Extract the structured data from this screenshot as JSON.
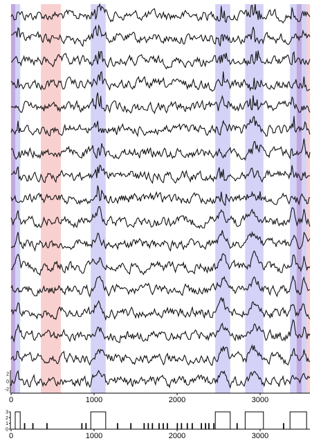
{
  "chart_data": [
    {
      "type": "line",
      "panel": "traces",
      "xlim": [
        0,
        3600
      ],
      "x_ticks": [
        0,
        1000,
        2000,
        3000
      ],
      "x_tick_labels": [
        "0",
        "1000",
        "2000",
        "3000"
      ],
      "y_small_tick_labels": [
        "2",
        "0",
        "-2"
      ],
      "trace_count": 17,
      "highlight_regions": [
        {
          "start": 0,
          "end": 50,
          "color": "#b49ad8"
        },
        {
          "start": 50,
          "end": 110,
          "color": "#cdcaf6"
        },
        {
          "start": 360,
          "end": 600,
          "color": "#f8c8c8"
        },
        {
          "start": 960,
          "end": 1140,
          "color": "#cdcaf6"
        },
        {
          "start": 2460,
          "end": 2640,
          "color": "#cdcaf6"
        },
        {
          "start": 2820,
          "end": 3040,
          "color": "#cdcaf6"
        },
        {
          "start": 3360,
          "end": 3440,
          "color": "#cdcaf6"
        },
        {
          "start": 3440,
          "end": 3500,
          "color": "#b49ad8"
        },
        {
          "start": 3500,
          "end": 3560,
          "color": "#cdcaf6"
        },
        {
          "start": 3560,
          "end": 3600,
          "color": "#f8c8c8"
        }
      ],
      "line_color": "#111111"
    },
    {
      "type": "line",
      "panel": "state",
      "xlim": [
        0,
        3600
      ],
      "ylim": [
        0,
        3
      ],
      "x_ticks": [
        0,
        1000,
        2000,
        3000
      ],
      "x_tick_labels": [
        "0",
        "1000",
        "2000",
        "3000"
      ],
      "y_ticks": [
        0,
        1,
        2,
        3
      ],
      "y_tick_labels": [
        "0",
        "1",
        "2",
        "3"
      ],
      "state_blocks": [
        {
          "start": 50,
          "end": 110,
          "value": 3
        },
        {
          "start": 960,
          "end": 1140,
          "value": 3
        },
        {
          "start": 2460,
          "end": 2640,
          "value": 3
        },
        {
          "start": 2820,
          "end": 3040,
          "value": 3
        },
        {
          "start": 3360,
          "end": 3560,
          "value": 3
        }
      ],
      "spikes": [
        {
          "x": 160,
          "value": 1
        },
        {
          "x": 260,
          "value": 1
        },
        {
          "x": 430,
          "value": 1
        },
        {
          "x": 850,
          "value": 1
        },
        {
          "x": 900,
          "value": 1
        },
        {
          "x": 1280,
          "value": 1
        },
        {
          "x": 1440,
          "value": 1
        },
        {
          "x": 1600,
          "value": 1
        },
        {
          "x": 1650,
          "value": 1
        },
        {
          "x": 1700,
          "value": 1
        },
        {
          "x": 1780,
          "value": 1
        },
        {
          "x": 1830,
          "value": 1
        },
        {
          "x": 1880,
          "value": 1
        },
        {
          "x": 2000,
          "value": 1
        },
        {
          "x": 2050,
          "value": 1
        },
        {
          "x": 2120,
          "value": 1
        },
        {
          "x": 2180,
          "value": 1
        },
        {
          "x": 2290,
          "value": 1
        },
        {
          "x": 2340,
          "value": 1
        },
        {
          "x": 2380,
          "value": 1
        },
        {
          "x": 2440,
          "value": 1
        },
        {
          "x": 2720,
          "value": 1
        },
        {
          "x": 3280,
          "value": 1
        }
      ]
    }
  ]
}
